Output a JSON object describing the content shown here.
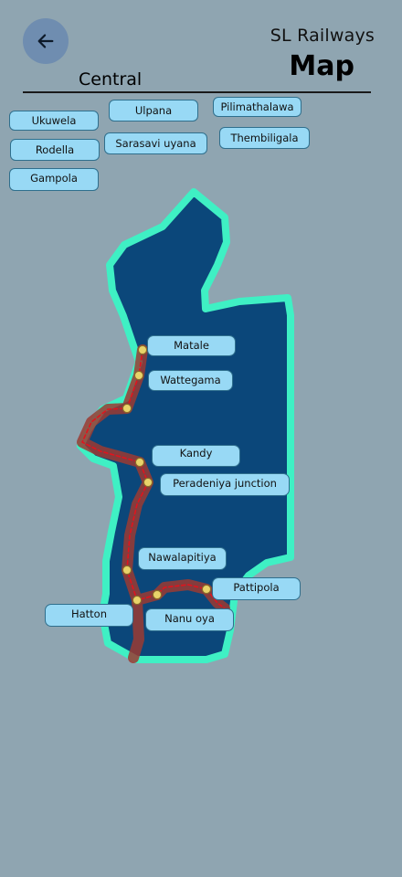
{
  "header": {
    "back_icon": "arrow-left-icon",
    "app_title": "SL Railways",
    "page_title": "Map",
    "region": "Central"
  },
  "colors": {
    "background": "#8fa5b1",
    "region_fill": "#0b477a",
    "region_outline": "#3ff0c4",
    "rail_line": "#b23a2e",
    "chip_fill": "#98d9f5",
    "station_dot": "#e8d36a"
  },
  "towns": [
    "Ukuwela",
    "Ulpana",
    "Pilimathalawa",
    "Rodella",
    "Sarasavi uyana",
    "Thembiligala",
    "Gampola"
  ],
  "stations": [
    "Matale",
    "Wattegama",
    "Kandy",
    "Peradeniya junction",
    "Nawalapitiya",
    "Pattipola",
    "Hatton",
    "Nanu oya"
  ]
}
